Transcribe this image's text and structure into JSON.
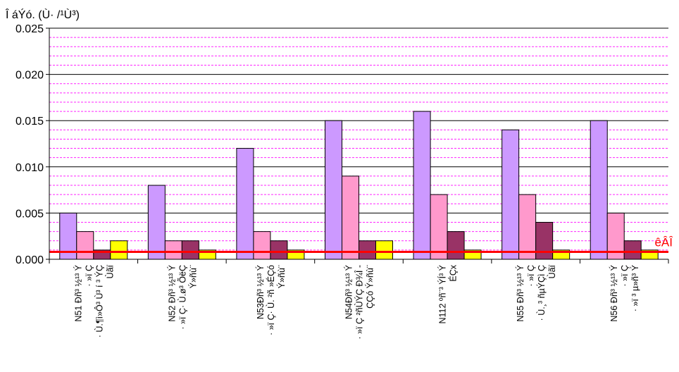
{
  "chart_data": {
    "type": "bar",
    "ylabel": "Î áÝó. (Ù· /¹Ù³)",
    "ylim": [
      0,
      0.025
    ],
    "ytick_labels": [
      "0.000",
      "0.005",
      "0.010",
      "0.015",
      "0.020",
      "0.025"
    ],
    "yticks": [
      0,
      0.005,
      0.01,
      0.015,
      0.02,
      0.025
    ],
    "grid": "major solid black lines, minor dashed magenta lines",
    "categories": [
      [
        "N51 Ðñ³ ½¹³ Ý",
        "· »ï Ç",
        "· Ù.¶ì»Ô³ Ù³ í ³ ÝÇ",
        "Ùãï"
      ],
      [
        "N52 Ðñ³ ½¹³ Ý",
        "· »ï Ç· Ù.ø³ ÕëÇ",
        "Ý»ñù¨"
      ],
      [
        "N53Ðñ³ ½¹³ Ý",
        "· »ï Ç· Ù. ²ñ »ÉÇó",
        "Ý»ñù¨"
      ],
      [
        "N54Ðñ³ ½¹³ Ý",
        "· »ï Ç ²ñÙÝÇ Ð¾Î -",
        "ÇÇó Ý»ñù¨"
      ],
      [
        "N112 ºñ¨³ ÝÍ³ Ý",
        "ÉÇx"
      ],
      [
        "N55 Ðñ³ ½¹³ Ý",
        "· »ï Ç",
        "· Ù.¸³ ñµÝÇì Ç",
        "Ùãï"
      ],
      [
        "N56 Ðñ³ ½¹³ Ý",
        "· »ï Ç",
        "· »ï ³ µ»ñ³ Ý"
      ]
    ],
    "series": [
      {
        "values": [
          0.005,
          0.008,
          0.012,
          0.015,
          0.016,
          0.014,
          0.015
        ]
      },
      {
        "values": [
          0.003,
          0.002,
          0.003,
          0.009,
          0.007,
          0.007,
          0.005
        ]
      },
      {
        "values": [
          0.001,
          0.002,
          0.002,
          0.002,
          0.003,
          0.004,
          0.002
        ]
      },
      {
        "values": [
          0.002,
          0.001,
          0.001,
          0.002,
          0.001,
          0.001,
          0.001
        ]
      }
    ],
    "reference_line": {
      "label": "êÂÎ",
      "value": 0.0008
    },
    "colors": {
      "series": [
        "#cc99ff",
        "#ff99cc",
        "#993366",
        "#ffff00"
      ],
      "reference_line": "#ff0000",
      "minor_grid": "#ff00ff",
      "major_grid": "#000000"
    }
  }
}
